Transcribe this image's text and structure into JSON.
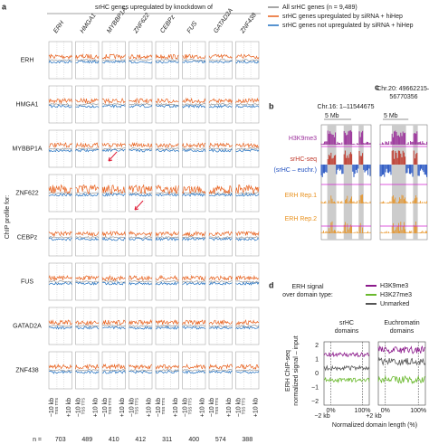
{
  "panel_a": {
    "label": "a",
    "title": "srHC genes upregulated by knockdown of",
    "columns": [
      "ERH",
      "HMGA1",
      "MYBBP1A",
      "ZNF622",
      "CEBPz",
      "FUS",
      "GATAD2A",
      "ZNF438"
    ],
    "rows": [
      "ERH",
      "HMGA1",
      "MYBBP1A",
      "ZNF622",
      "CEBPz",
      "FUS",
      "GATAD2A",
      "ZNF438"
    ],
    "row_axis_title": "ChIP profile for:",
    "x_ticks": [
      "TSS TTS",
      "−10 kb",
      "+10 kb"
    ],
    "n_label": "n =",
    "n_values": [
      703,
      489,
      410,
      412,
      311,
      400,
      574,
      388
    ]
  },
  "legend": [
    "All srHC genes (n = 9,489)",
    "srHC genes upregulated by siRNA + hiHep",
    "srHC genes not upregulated by siRNA + hiHep"
  ],
  "panel_b": {
    "label": "b",
    "region": "Chr.16: 1–11544675",
    "scale": "5 Mb",
    "tracks": [
      "H3K9me3",
      "srHC-seq",
      "(srHC – euchr.)",
      "ERH Rep.1",
      "ERH Rep.2"
    ]
  },
  "panel_c": {
    "label": "c",
    "region": [
      "Chr.20: 49662215–",
      "56770356"
    ],
    "scale": "5 Mb"
  },
  "panel_d": {
    "label": "d",
    "legend_title": [
      "ERH signal",
      "over domain type:"
    ],
    "legend": [
      "H3K9me3",
      "H3K27me3",
      "Unmarked"
    ],
    "panels": [
      [
        "srHC",
        "domains"
      ],
      [
        "Euchromatin",
        "domains"
      ]
    ],
    "y_title": [
      "ERH ChIP-seq",
      "normalized signal – input"
    ],
    "y_ticks": [
      "2",
      "1",
      "0",
      "−1",
      "−2"
    ],
    "x_ticks": [
      "−2 kb",
      "0%",
      "100%",
      "+2 kb"
    ],
    "x_title": "Normalized domain length (%)"
  }
}
